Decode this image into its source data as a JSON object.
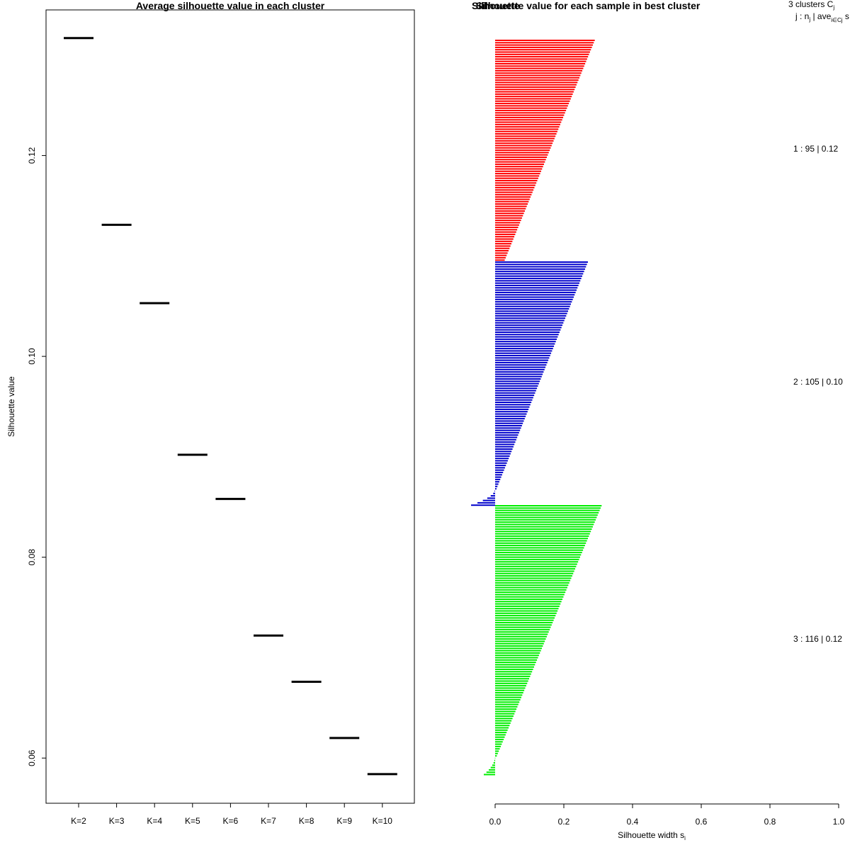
{
  "chart_data": [
    {
      "type": "scatter",
      "title": "Average silhouette value in each cluster",
      "xlabel": "",
      "ylabel": "Silhouette value",
      "categories": [
        "K=2",
        "K=3",
        "K=4",
        "K=5",
        "K=6",
        "K=7",
        "K=8",
        "K=9",
        "K=10"
      ],
      "values": [
        0.1317,
        0.1131,
        0.1053,
        0.0902,
        0.0858,
        0.0722,
        0.0676,
        0.062,
        0.0584
      ],
      "ylim": [
        0.0555,
        0.1345
      ],
      "yticks": [
        0.06,
        0.08,
        0.1,
        0.12
      ],
      "ytick_labels": [
        "0.06",
        "0.08",
        "0.10",
        "0.12"
      ],
      "grid": false,
      "legend": null
    },
    {
      "type": "bar",
      "orientation": "horizontal",
      "title": "Silhouette value for each sample in best cluster",
      "overlapping_title_text": "Silhouette",
      "xlabel": "Silhouette width s",
      "xlabel_subscript": "i",
      "ylabel": "",
      "xlim": [
        0.0,
        1.0
      ],
      "xticks": [
        0.0,
        0.2,
        0.4,
        0.6,
        0.8,
        1.0
      ],
      "xtick_labels": [
        "0.0",
        "0.2",
        "0.4",
        "0.6",
        "0.8",
        "1.0"
      ],
      "grid": false,
      "legend_header": {
        "line1": "3  clusters  C",
        "line1_sub": "j",
        "line2": "j :  n",
        "line2_sub": "j",
        "line2_rest": " | ave",
        "line2_sub2": "i∈Cj",
        "line2_end": "  s"
      },
      "series": [
        {
          "name": "1",
          "color": "#ff0000",
          "n": 95,
          "legend_text": "1 :   95  |  0.12",
          "start": 0.29,
          "end": 0.028,
          "exponent": 1.0,
          "neg_count": 0,
          "neg_min": 0
        },
        {
          "name": "2",
          "color": "#0000cc",
          "n": 105,
          "legend_text": "2 :   105  |  0.10",
          "start": 0.27,
          "end": 0.004,
          "exponent": 1.0,
          "neg_count": 7,
          "neg_min": -0.07
        },
        {
          "name": "3",
          "color": "#00ee00",
          "n": 116,
          "legend_text": "3 :   116  |  0.12",
          "start": 0.31,
          "end": 0.005,
          "exponent": 1.0,
          "neg_count": 8,
          "neg_min": -0.033
        }
      ]
    }
  ]
}
